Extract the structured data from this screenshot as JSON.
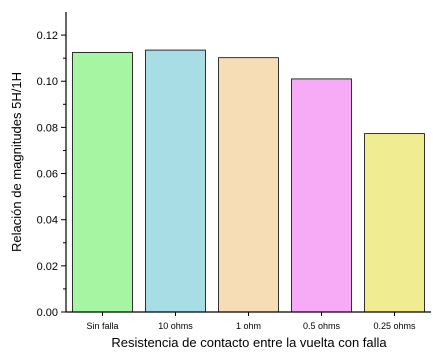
{
  "chart_data": {
    "type": "bar",
    "categories": [
      "Sin falla",
      "10 ohms",
      "1 ohm",
      "0.5 ohms",
      "0.25 ohms"
    ],
    "values": [
      0.1125,
      0.1135,
      0.1102,
      0.101,
      0.0773
    ],
    "bar_colors": [
      "#a5f5a3",
      "#a9dde6",
      "#f6ddb5",
      "#f7aaf6",
      "#f0ec91"
    ],
    "xlabel": "Resistencia de contacto entre la vuelta con falla",
    "ylabel": "Relación de magnitudes 5H/1H",
    "ylim": [
      0,
      0.13
    ],
    "yticks": [
      "0.00",
      "0.02",
      "0.04",
      "0.06",
      "0.08",
      "0.10",
      "0.12"
    ],
    "grid": false,
    "legend": "none"
  }
}
